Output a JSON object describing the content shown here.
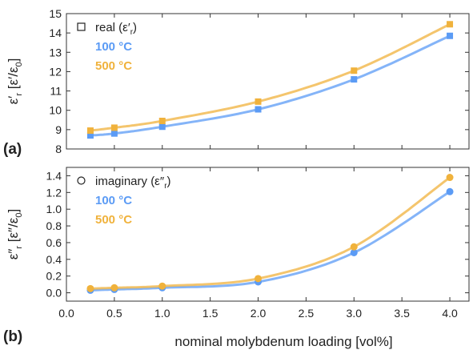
{
  "chart_data": [
    {
      "type": "scatter",
      "panel_label": "(a)",
      "ylabel": "ε'r [ε'/ε0]",
      "ylim": [
        8,
        15
      ],
      "yticks": [
        8,
        9,
        10,
        11,
        12,
        13,
        14,
        15
      ],
      "xlim": [
        0.0,
        4.2
      ],
      "legend_title": "real (ε'r)",
      "legend_position": "top-left",
      "series": [
        {
          "name": "100 °C",
          "color": "#5b9bf5",
          "x": [
            0.25,
            0.5,
            1.0,
            2.0,
            3.0,
            4.0
          ],
          "values": [
            8.7,
            8.8,
            9.15,
            10.05,
            11.6,
            13.85
          ]
        },
        {
          "name": "500 °C",
          "color": "#f0b23c",
          "x": [
            0.25,
            0.5,
            1.0,
            2.0,
            3.0,
            4.0
          ],
          "values": [
            8.95,
            9.1,
            9.45,
            10.45,
            12.05,
            14.45
          ]
        }
      ]
    },
    {
      "type": "scatter",
      "panel_label": "(b)",
      "ylabel": "ε''r [ε''/ε0]",
      "ylim": [
        -0.1,
        1.5
      ],
      "yticks": [
        0.0,
        0.2,
        0.4,
        0.6,
        0.8,
        1.0,
        1.2,
        1.4
      ],
      "xlim": [
        0.0,
        4.2
      ],
      "xticks": [
        0.0,
        0.5,
        1.0,
        1.5,
        2.0,
        2.5,
        3.0,
        3.5,
        4.0
      ],
      "xlabel": "nominal molybdenum loading [vol%]",
      "legend_title": "imaginary (ε''r)",
      "legend_position": "top-left",
      "series": [
        {
          "name": "100 °C",
          "color": "#5b9bf5",
          "x": [
            0.25,
            0.5,
            1.0,
            2.0,
            3.0,
            4.0
          ],
          "values": [
            0.03,
            0.04,
            0.06,
            0.13,
            0.48,
            1.21
          ]
        },
        {
          "name": "500 °C",
          "color": "#f0b23c",
          "x": [
            0.25,
            0.5,
            1.0,
            2.0,
            3.0,
            4.0
          ],
          "values": [
            0.05,
            0.06,
            0.08,
            0.17,
            0.55,
            1.38
          ]
        }
      ]
    }
  ]
}
